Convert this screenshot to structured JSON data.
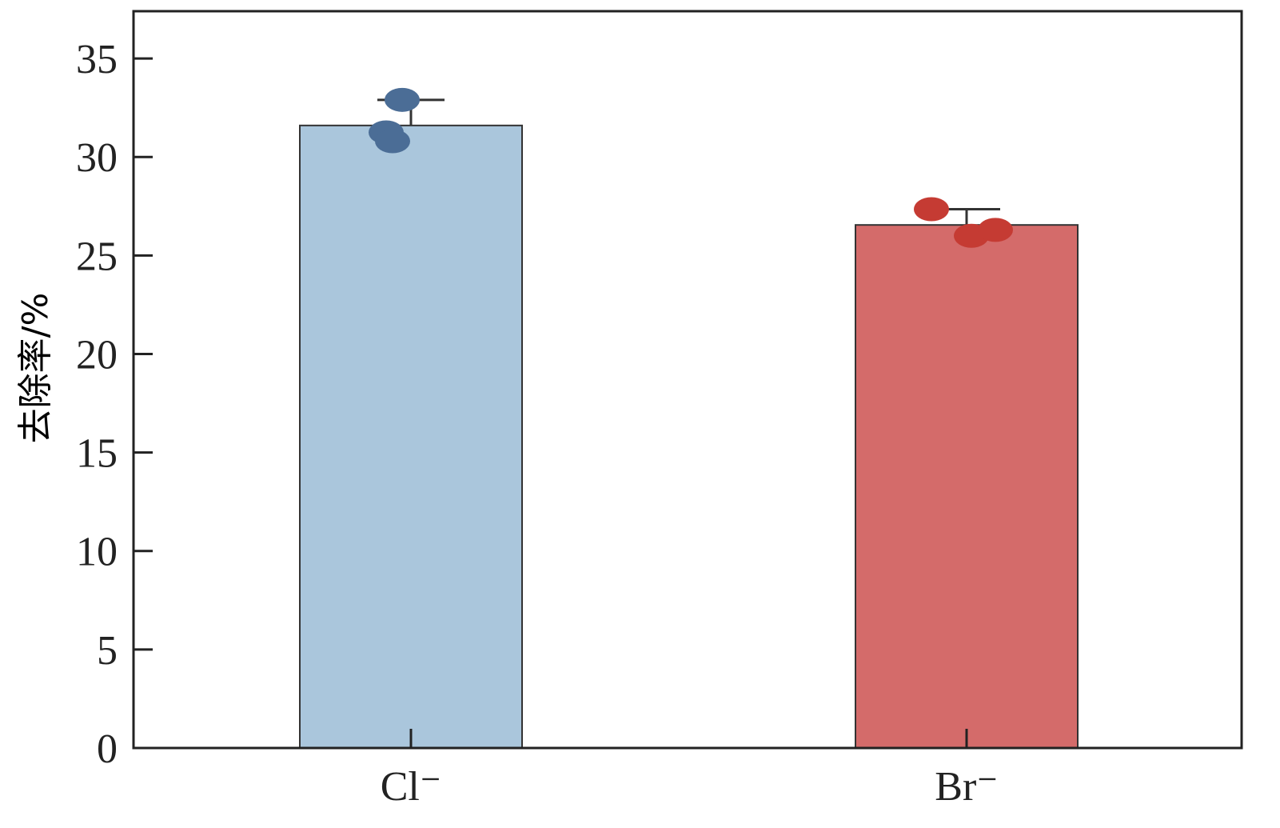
{
  "chart_data": {
    "type": "bar",
    "title": "",
    "xlabel": "",
    "ylabel": "去除率/%",
    "ylim": [
      0,
      37.4
    ],
    "yticks": [
      0,
      5,
      10,
      15,
      20,
      25,
      30,
      35
    ],
    "categories": [
      "Cl⁻",
      "Br⁻"
    ],
    "values": [
      31.6,
      26.55
    ],
    "error_upper": [
      32.9,
      27.35
    ],
    "points": [
      [
        32.9,
        31.25,
        30.8
      ],
      [
        27.35,
        26.0,
        26.3
      ]
    ],
    "bar_colors": [
      "#aac6dc",
      "#d46b6a"
    ],
    "point_colors": [
      "#4b6d96",
      "#c53b33"
    ],
    "grid": false
  }
}
